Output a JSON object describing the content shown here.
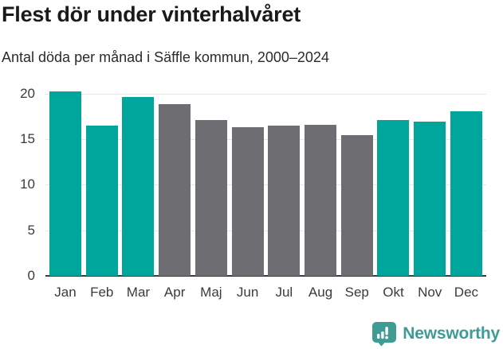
{
  "chart": {
    "title": "Flest dör under vinterhalvåret",
    "subtitle": "Antal döda per månad i Säffle kommun, 2000–2024"
  },
  "chart_data": {
    "type": "bar",
    "title": "Flest dör under vinterhalvåret",
    "subtitle": "Antal döda per månad i Säffle kommun, 2000–2024",
    "categories": [
      "Jan",
      "Feb",
      "Mar",
      "Apr",
      "Maj",
      "Jun",
      "Jul",
      "Aug",
      "Sep",
      "Okt",
      "Nov",
      "Dec"
    ],
    "values": [
      20.2,
      16.5,
      19.6,
      18.8,
      17.1,
      16.3,
      16.5,
      16.6,
      15.4,
      17.1,
      16.9,
      18.0
    ],
    "highlighted": [
      true,
      true,
      true,
      false,
      false,
      false,
      false,
      false,
      false,
      true,
      true,
      true
    ],
    "yticks": [
      0,
      5,
      10,
      15,
      20
    ],
    "ylim": [
      0,
      20.2
    ],
    "grid": true,
    "legend_position": "none",
    "xlabel": "",
    "ylabel": "",
    "colors": {
      "highlight": "#00a59b",
      "base": "#6e6e72",
      "grid": "#e7e7e7",
      "axis": "#3b3b3b",
      "tick_text": "#3b3b3b"
    }
  },
  "footer": {
    "brand": "Newsworthy",
    "brand_color": "#3f9c95",
    "logo_icon": "bar-chart-speech-bubble-icon"
  }
}
